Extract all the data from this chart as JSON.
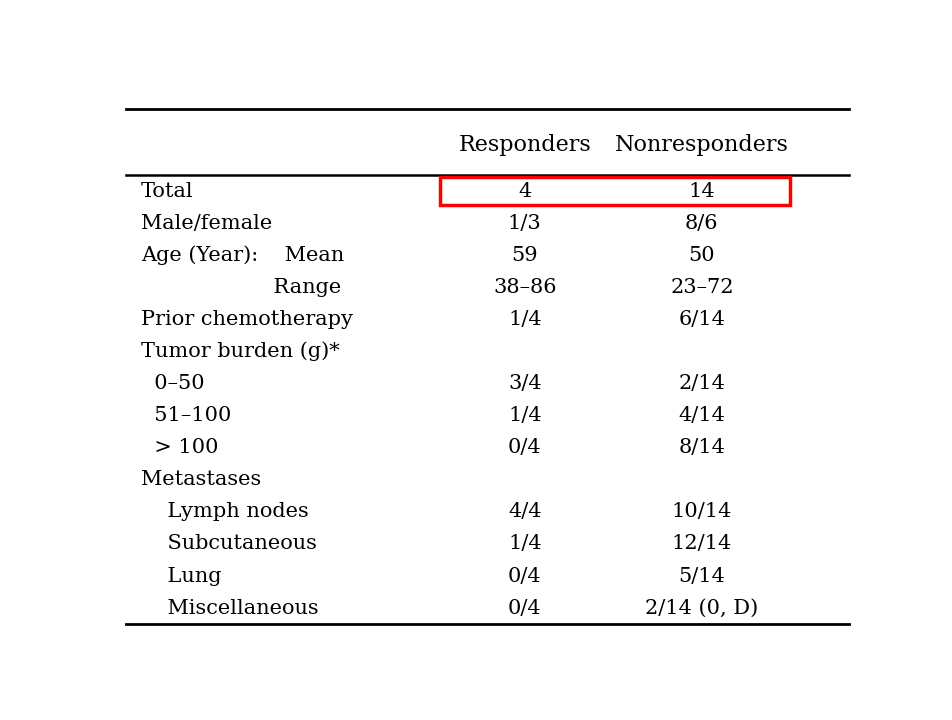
{
  "col_headers": [
    "",
    "Responders",
    "Nonresponders"
  ],
  "rows": [
    {
      "label": "Total",
      "responders": "4",
      "nonresponders": "14",
      "highlight": true
    },
    {
      "label": "Male/female",
      "responders": "1/3",
      "nonresponders": "8/6",
      "highlight": false
    },
    {
      "label": "Age (Year):    Mean",
      "responders": "59",
      "nonresponders": "50",
      "highlight": false
    },
    {
      "label": "                    Range",
      "responders": "38–86",
      "nonresponders": "23–72",
      "highlight": false
    },
    {
      "label": "Prior chemotherapy",
      "responders": "1/4",
      "nonresponders": "6/14",
      "highlight": false
    },
    {
      "label": "Tumor burden (g)*",
      "responders": "",
      "nonresponders": "",
      "highlight": false
    },
    {
      "label": "  0–50",
      "responders": "3/4",
      "nonresponders": "2/14",
      "highlight": false
    },
    {
      "label": "  51–100",
      "responders": "1/4",
      "nonresponders": "4/14",
      "highlight": false
    },
    {
      "label": "  > 100",
      "responders": "0/4",
      "nonresponders": "8/14",
      "highlight": false
    },
    {
      "label": "Metastases",
      "responders": "",
      "nonresponders": "",
      "highlight": false
    },
    {
      "label": "    Lymph nodes",
      "responders": "4/4",
      "nonresponders": "10/14",
      "highlight": false
    },
    {
      "label": "    Subcutaneous",
      "responders": "1/4",
      "nonresponders": "12/14",
      "highlight": false
    },
    {
      "label": "    Lung",
      "responders": "0/4",
      "nonresponders": "5/14",
      "highlight": false
    },
    {
      "label": "    Miscellaneous",
      "responders": "0/4",
      "nonresponders": "2/14 (0, D)",
      "highlight": false
    }
  ],
  "bg_color": "#ffffff",
  "text_color": "#000000",
  "highlight_color": "#ff0000",
  "font_size": 15,
  "header_font_size": 16
}
